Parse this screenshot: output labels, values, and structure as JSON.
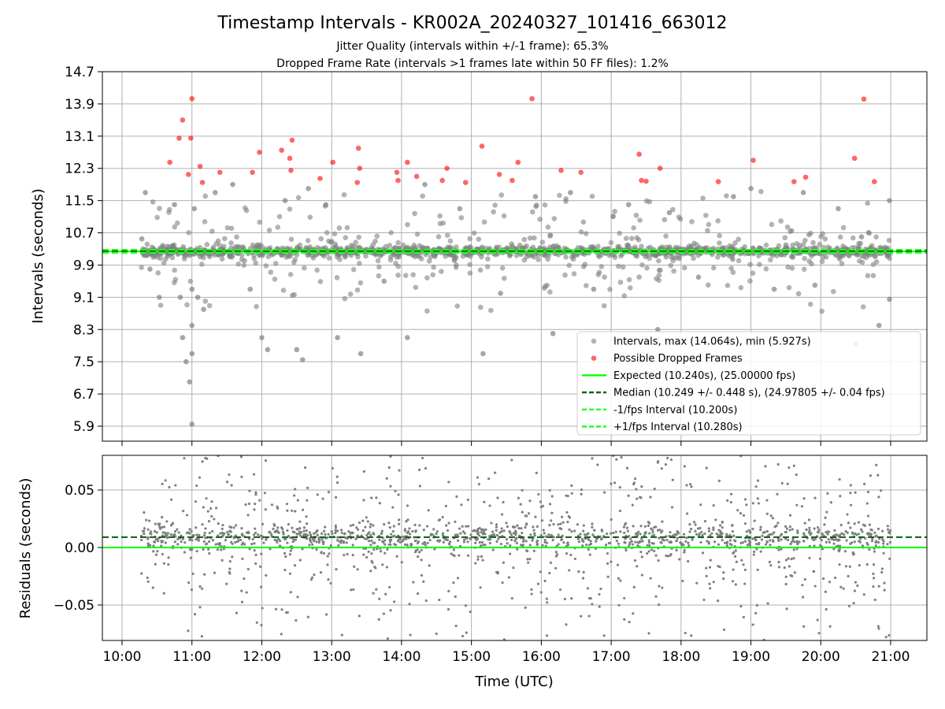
{
  "title": "Timestamp Intervals - KR002A_20240327_101416_663012",
  "subtitle_1": "Jitter Quality (intervals within +/-1 frame): 65.3%",
  "subtitle_2": "Dropped Frame Rate (intervals >1 frames late within 50 FF files): 1.2%",
  "colors": {
    "intervals": "#808080",
    "dropped": "#ff0000",
    "expected": "#00ff00",
    "median": "#006400",
    "frame_interval": "#22ff22",
    "residuals": "#808080",
    "grid": "#b0b0b0"
  },
  "chart_data": [
    {
      "type": "scatter",
      "ylabel": "Intervals (seconds)",
      "xlabel": "",
      "xlim": [
        "09:48",
        "21:32"
      ],
      "ylim": [
        5.5,
        14.7
      ],
      "y_ticks": [
        "5.9",
        "6.7",
        "7.5",
        "8.3",
        "9.1",
        "9.9",
        "10.7",
        "11.5",
        "12.3",
        "13.1",
        "13.9",
        "14.7"
      ],
      "x_ticks": [
        "10:00",
        "11:00",
        "12:00",
        "13:00",
        "14:00",
        "15:00",
        "16:00",
        "17:00",
        "18:00",
        "19:00",
        "20:00",
        "21:00"
      ],
      "grid": true,
      "legend_position": "lower-right",
      "series": [
        {
          "name": "Intervals, max (14.064s), min (5.927s)",
          "kind": "scatter",
          "x_range": [
            "10:16",
            "21:00"
          ],
          "sample_points": [
            [
              "10:17",
              10.55
            ],
            [
              "10:20",
              11.7
            ],
            [
              "10:24",
              9.8
            ],
            [
              "10:32",
              9.1
            ],
            [
              "10:45",
              11.4
            ],
            [
              "10:50",
              9.1
            ],
            [
              "10:52",
              8.1
            ],
            [
              "10:55",
              7.5
            ],
            [
              "10:58",
              7.0
            ],
            [
              "11:00",
              9.3
            ],
            [
              "11:00",
              8.4
            ],
            [
              "11:00",
              5.95
            ],
            [
              "11:00",
              7.7
            ],
            [
              "11:02",
              11.3
            ],
            [
              "11:05",
              9.1
            ],
            [
              "11:10",
              8.8
            ],
            [
              "11:20",
              11.7
            ],
            [
              "11:35",
              11.9
            ],
            [
              "11:50",
              9.3
            ],
            [
              "12:00",
              8.1
            ],
            [
              "12:05",
              7.8
            ],
            [
              "12:20",
              11.5
            ],
            [
              "12:30",
              7.8
            ],
            [
              "12:35",
              7.55
            ],
            [
              "12:40",
              11.8
            ],
            [
              "12:55",
              11.4
            ],
            [
              "13:05",
              8.1
            ],
            [
              "13:25",
              7.7
            ],
            [
              "13:45",
              9.5
            ],
            [
              "14:05",
              8.1
            ],
            [
              "14:20",
              11.9
            ],
            [
              "14:50",
              11.3
            ],
            [
              "15:10",
              7.7
            ],
            [
              "15:25",
              9.2
            ],
            [
              "15:55",
              11.6
            ],
            [
              "16:10",
              8.2
            ],
            [
              "16:25",
              11.7
            ],
            [
              "16:45",
              9.3
            ],
            [
              "17:15",
              11.4
            ],
            [
              "17:40",
              8.3
            ],
            [
              "17:50",
              11.2
            ],
            [
              "18:15",
              9.6
            ],
            [
              "18:45",
              11.6
            ],
            [
              "19:00",
              11.8
            ],
            [
              "19:20",
              9.3
            ],
            [
              "19:45",
              11.7
            ],
            [
              "19:55",
              9.4
            ],
            [
              "20:15",
              11.3
            ],
            [
              "20:30",
              7.95
            ],
            [
              "20:35",
              10.6
            ],
            [
              "20:50",
              8.4
            ],
            [
              "20:59",
              11.5
            ],
            [
              "20:59",
              9.05
            ]
          ]
        },
        {
          "name": "Possible Dropped Frames",
          "kind": "scatter",
          "points": [
            [
              "10:41",
              12.45
            ],
            [
              "10:49",
              13.05
            ],
            [
              "10:52",
              13.5
            ],
            [
              "10:57",
              12.15
            ],
            [
              "10:59",
              13.05
            ],
            [
              "11:00",
              14.03
            ],
            [
              "11:07",
              12.35
            ],
            [
              "11:09",
              11.95
            ],
            [
              "11:24",
              12.2
            ],
            [
              "11:52",
              12.2
            ],
            [
              "11:58",
              12.7
            ],
            [
              "12:17",
              12.75
            ],
            [
              "12:24",
              12.55
            ],
            [
              "12:25",
              12.25
            ],
            [
              "12:26",
              13.0
            ],
            [
              "12:50",
              12.05
            ],
            [
              "13:01",
              12.45
            ],
            [
              "13:22",
              11.95
            ],
            [
              "13:23",
              12.8
            ],
            [
              "13:24",
              12.3
            ],
            [
              "13:56",
              12.2
            ],
            [
              "13:57",
              12.0
            ],
            [
              "14:05",
              12.45
            ],
            [
              "14:13",
              12.1
            ],
            [
              "14:35",
              12.0
            ],
            [
              "14:39",
              12.3
            ],
            [
              "14:55",
              11.95
            ],
            [
              "15:09",
              12.85
            ],
            [
              "15:24",
              12.15
            ],
            [
              "15:35",
              12.0
            ],
            [
              "15:40",
              12.45
            ],
            [
              "15:52",
              14.03
            ],
            [
              "16:17",
              12.25
            ],
            [
              "16:34",
              12.2
            ],
            [
              "17:24",
              12.65
            ],
            [
              "17:26",
              12.0
            ],
            [
              "17:30",
              11.98
            ],
            [
              "17:42",
              12.3
            ],
            [
              "18:32",
              11.97
            ],
            [
              "19:02",
              12.5
            ],
            [
              "19:37",
              11.97
            ],
            [
              "19:47",
              12.08
            ],
            [
              "20:29",
              12.55
            ],
            [
              "20:37",
              14.02
            ],
            [
              "20:46",
              11.97
            ]
          ]
        },
        {
          "name": "Expected (10.240s), (25.00000 fps)",
          "kind": "hline",
          "y": 10.24,
          "style": "solid"
        },
        {
          "name": "Median (10.249 +/- 0.448 s), (24.97805 +/- 0.04 fps)",
          "kind": "hline",
          "y": 10.249,
          "style": "dashed"
        },
        {
          "name": "-1/fps Interval (10.200s)",
          "kind": "hline",
          "y": 10.2,
          "style": "dashed"
        },
        {
          "name": "+1/fps Interval (10.280s)",
          "kind": "hline",
          "y": 10.28,
          "style": "dashed"
        }
      ]
    },
    {
      "type": "scatter",
      "ylabel": "Residuals (seconds)",
      "xlabel": "Time (UTC)",
      "xlim": [
        "09:48",
        "21:32"
      ],
      "ylim": [
        -0.08,
        0.08
      ],
      "y_ticks": [
        "−0.05",
        "0.00",
        "0.05"
      ],
      "x_ticks": [
        "10:00",
        "11:00",
        "12:00",
        "13:00",
        "14:00",
        "15:00",
        "16:00",
        "17:00",
        "18:00",
        "19:00",
        "20:00",
        "21:00"
      ],
      "grid": true,
      "series": [
        {
          "kind": "hline",
          "y": 0.0,
          "style": "solid",
          "color_ref": "expected"
        },
        {
          "kind": "hline",
          "y": 0.009,
          "style": "dashed",
          "color_ref": "median"
        },
        {
          "kind": "scatter",
          "note": "residual points dense around 0.00-0.01, spread to ±0.08",
          "x_range": [
            "10:16",
            "21:00"
          ]
        }
      ]
    }
  ]
}
